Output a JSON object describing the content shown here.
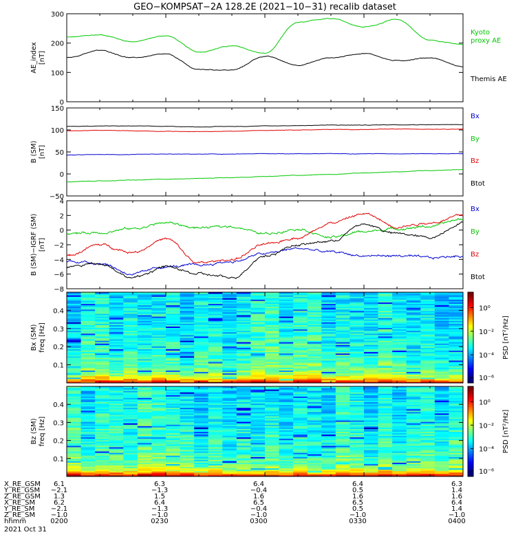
{
  "title": "GEO−KOMPSAT−2A 128.2E (2021−10−31) recalib dataset",
  "colors": {
    "black": "#000000",
    "red": "#e00000",
    "green": "#00c800",
    "blue": "#0000d0"
  },
  "chart_data": [
    {
      "type": "line",
      "id": "ae",
      "ylabel": "AE_index [nT]",
      "ylim": [
        0,
        300
      ],
      "yticks": [
        "0",
        "100",
        "200",
        "300"
      ],
      "x": [
        "0200",
        "0210",
        "0220",
        "0230",
        "0240",
        "0250",
        "0300",
        "0310",
        "0320",
        "0330",
        "0340",
        "0350",
        "0400"
      ],
      "grid": false,
      "series": [
        {
          "name": "Kyoto proxy AE",
          "color": "#00c800",
          "values": [
            220,
            228,
            205,
            225,
            170,
            190,
            165,
            270,
            285,
            255,
            280,
            210,
            195
          ]
        },
        {
          "name": "Themis AE",
          "color": "#000000",
          "values": [
            150,
            175,
            150,
            162,
            110,
            108,
            155,
            125,
            150,
            165,
            140,
            150,
            120
          ]
        }
      ],
      "legend_position": "right"
    },
    {
      "type": "line",
      "id": "bsm",
      "ylabel": "B (SM) [nT]",
      "ylim": [
        -50,
        150
      ],
      "yticks": [
        "−50",
        "0",
        "50",
        "100",
        "150"
      ],
      "x": [
        "0200",
        "0210",
        "0220",
        "0230",
        "0240",
        "0250",
        "0300",
        "0310",
        "0320",
        "0330",
        "0340",
        "0350",
        "0400"
      ],
      "grid": false,
      "series": [
        {
          "name": "Bx",
          "color": "#0000d0",
          "values": [
            43,
            44,
            44,
            45,
            45,
            45,
            46,
            46,
            46,
            46,
            46,
            46,
            46
          ]
        },
        {
          "name": "By",
          "color": "#00c800",
          "values": [
            -18,
            -16,
            -14,
            -12,
            -10,
            -8,
            -6,
            -3,
            -1,
            2,
            5,
            8,
            10
          ]
        },
        {
          "name": "Bz",
          "color": "#e00000",
          "values": [
            98,
            99,
            98,
            97,
            96,
            97,
            99,
            100,
            101,
            101,
            102,
            102,
            102
          ]
        },
        {
          "name": "Btot",
          "color": "#000000",
          "values": [
            108,
            109,
            109,
            108,
            107,
            108,
            109,
            110,
            111,
            111,
            112,
            112,
            112
          ]
        }
      ],
      "legend_position": "right"
    },
    {
      "type": "line",
      "id": "bigrf",
      "ylabel": "B (SM)−IGRF (SM) [nT]",
      "ylim": [
        -8,
        4
      ],
      "yticks": [
        "−8",
        "−6",
        "−4",
        "−2",
        "0",
        "2",
        "4"
      ],
      "x": [
        "0200",
        "0210",
        "0220",
        "0230",
        "0240",
        "0250",
        "0300",
        "0310",
        "0320",
        "0330",
        "0340",
        "0350",
        "0400"
      ],
      "grid": false,
      "series": [
        {
          "name": "Bx",
          "color": "#0000d0",
          "values": [
            -4.2,
            -4.5,
            -6.0,
            -5.0,
            -4.8,
            -4.3,
            -3.2,
            -2.5,
            -3.0,
            -3.5,
            -3.5,
            -3.8,
            -3.5
          ]
        },
        {
          "name": "By",
          "color": "#00c800",
          "values": [
            -0.5,
            -0.3,
            0.2,
            1.0,
            0.3,
            0.5,
            -0.5,
            0.2,
            -1.0,
            -0.2,
            0.2,
            0.5,
            1.5
          ]
        },
        {
          "name": "Bz",
          "color": "#e00000",
          "values": [
            -3.5,
            -2.0,
            -3.0,
            -1.2,
            -4.5,
            -4.0,
            -2.0,
            -1.0,
            1.0,
            2.2,
            0.5,
            1.0,
            2.0
          ]
        },
        {
          "name": "Btot",
          "color": "#000000",
          "values": [
            -5.0,
            -4.5,
            -6.5,
            -5.0,
            -6.0,
            -6.5,
            -3.5,
            -2.0,
            -1.5,
            0.8,
            -0.5,
            -1.0,
            1.0
          ]
        }
      ],
      "legend_position": "right"
    },
    {
      "type": "heatmap",
      "id": "bx_spec",
      "ylabel": "Bx (SM) freq [Hz]",
      "ylim": [
        0,
        0.5
      ],
      "yticks": [
        "0.1",
        "0.2",
        "0.3",
        "0.4"
      ],
      "colorbar_label": "PSD [nT²/Hz]",
      "colorbar_ticks": [
        "10⁰",
        "10⁻²",
        "10⁻⁴",
        "10⁻⁶"
      ]
    },
    {
      "type": "heatmap",
      "id": "bz_spec",
      "ylabel": "Bz (SM) freq [Hz]",
      "ylim": [
        0,
        0.5
      ],
      "yticks": [
        "0.1",
        "0.2",
        "0.3",
        "0.4"
      ],
      "colorbar_label": "PSD [nT²/Hz]",
      "colorbar_ticks": [
        "10⁰",
        "10⁻²",
        "10⁻⁴",
        "10⁻⁶"
      ]
    }
  ],
  "panel_labels": {
    "ae": {
      "ylabel_main": "AE_index",
      "ylabel_unit": "[nT]",
      "legend": [
        {
          "text": "Kyoto",
          "color": "#00c800"
        },
        {
          "text": "proxy AE",
          "color": "#00c800"
        },
        {
          "text": "Themis AE",
          "color": "#000000"
        }
      ]
    },
    "bsm": {
      "ylabel_main": "B (SM)",
      "ylabel_unit": "[nT]",
      "legend": [
        {
          "text": "Bx",
          "color": "#0000d0"
        },
        {
          "text": "By",
          "color": "#00c800"
        },
        {
          "text": "Bz",
          "color": "#e00000"
        },
        {
          "text": "Btot",
          "color": "#000000"
        }
      ]
    },
    "bigrf": {
      "ylabel_main": "B (SM)−IGRF (SM)",
      "ylabel_unit": "[nT]",
      "legend": [
        {
          "text": "Bx",
          "color": "#0000d0"
        },
        {
          "text": "By",
          "color": "#00c800"
        },
        {
          "text": "Bz",
          "color": "#e00000"
        },
        {
          "text": "Btot",
          "color": "#000000"
        }
      ]
    },
    "bx_spec": {
      "ylabel_main": "Bx (SM)",
      "ylabel_unit": "freq [Hz]"
    },
    "bz_spec": {
      "ylabel_main": "Bz (SM)",
      "ylabel_unit": "freq [Hz]"
    }
  },
  "ephemeris": {
    "rows": [
      {
        "label": "X_RE_GSM",
        "values": [
          "6.1",
          "6.3",
          "6.4",
          "6.4",
          "6.3"
        ]
      },
      {
        "label": "Y_RE_GSM",
        "values": [
          "−2.1",
          "−1.3",
          "−0.4",
          "0.5",
          "1.4"
        ]
      },
      {
        "label": "Z_RE_GSM",
        "values": [
          "1.3",
          "1.5",
          "1.6",
          "1.6",
          "1.6"
        ]
      },
      {
        "label": "X_RE_SM",
        "values": [
          "6.2",
          "6.4",
          "6.5",
          "6.5",
          "6.4"
        ]
      },
      {
        "label": "Y_RE_SM",
        "values": [
          "−2.1",
          "−1.3",
          "−0.4",
          "0.5",
          "1.4"
        ]
      },
      {
        "label": "Z_RE_SM",
        "values": [
          "−1.0",
          "−1.0",
          "−1.0",
          "−1.0",
          "−1.0"
        ]
      },
      {
        "label": "hhmm",
        "values": [
          "0200",
          "0230",
          "0300",
          "0330",
          "0400"
        ]
      }
    ],
    "date": "2021 Oct 31"
  }
}
